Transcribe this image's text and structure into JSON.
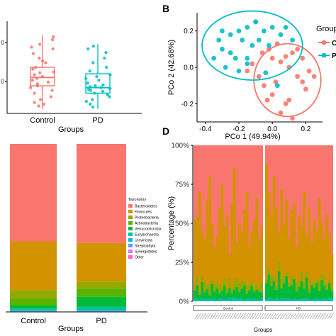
{
  "panels": {
    "B": "B",
    "D": "D"
  },
  "colors": {
    "control": "#F8766D",
    "pd": "#00BFC4",
    "bacteroidetes": "#F8766D",
    "firmicutes": "#D39200",
    "proteobacteria": "#93AA00",
    "actinobacteria": "#5BB300",
    "verrucomicrobia": "#00BA38",
    "euryarchaeota": "#00C19F",
    "uroviricota": "#00B9E3",
    "streptophyta": "#619CFF",
    "synergistetes": "#DB72FB",
    "other": "#FF61C3"
  },
  "chart_data": [
    {
      "id": "A",
      "type": "box",
      "xlabel": "Groups",
      "categories": [
        "Control",
        "PD"
      ],
      "y_tick_labels": [
        "0",
        "0"
      ],
      "boxes": [
        {
          "q1": 0.3,
          "median": 0.39,
          "q3": 0.5,
          "whisker_low": 0.05,
          "whisker_high": 0.85
        },
        {
          "q1": 0.22,
          "median": 0.28,
          "q3": 0.43,
          "whisker_low": 0.05,
          "whisker_high": 0.75
        }
      ],
      "points": [
        [
          0.8,
          0.83,
          0.72,
          0.75,
          0.7,
          0.65,
          0.6,
          0.57,
          0.55,
          0.5,
          0.48,
          0.45,
          0.44,
          0.42,
          0.4,
          0.38,
          0.36,
          0.34,
          0.32,
          0.3,
          0.28,
          0.25,
          0.22,
          0.18,
          0.15,
          0.12,
          0.1,
          0.08
        ],
        [
          0.73,
          0.7,
          0.66,
          0.6,
          0.55,
          0.5,
          0.46,
          0.42,
          0.4,
          0.38,
          0.36,
          0.33,
          0.31,
          0.3,
          0.29,
          0.28,
          0.27,
          0.26,
          0.25,
          0.24,
          0.22,
          0.2,
          0.18,
          0.15,
          0.13,
          0.1,
          0.07
        ]
      ]
    },
    {
      "id": "B",
      "type": "scatter",
      "xlabel": "PCo 1 (49.94%)",
      "ylabel": "PCo 2 (42.68%)",
      "xlim": [
        -0.45,
        0.3
      ],
      "ylim": [
        -0.3,
        0.3
      ],
      "x_ticks": [
        -0.4,
        -0.2,
        0.0,
        0.2
      ],
      "x_tick_labels": [
        "-0.4",
        "-0.2",
        "0.0",
        "0.2"
      ],
      "y_ticks": [
        -0.2,
        0.0,
        0.2
      ],
      "y_tick_labels": [
        "-0.2",
        "0.0",
        "0.2"
      ],
      "legend_title": "Group",
      "legend_labels": [
        "C",
        "P"
      ],
      "series": [
        {
          "points": [
            [
              0.05,
              0.03
            ],
            [
              0.1,
              0.0
            ],
            [
              0.15,
              -0.05
            ],
            [
              0.02,
              -0.08
            ],
            [
              -0.05,
              -0.1
            ],
            [
              0.0,
              -0.15
            ],
            [
              0.08,
              -0.2
            ],
            [
              0.2,
              -0.12
            ],
            [
              0.12,
              0.08
            ],
            [
              -0.08,
              -0.05
            ],
            [
              0.05,
              -0.25
            ],
            [
              -0.02,
              0.1
            ],
            [
              0.18,
              0.05
            ],
            [
              0.22,
              -0.02
            ],
            [
              -0.12,
              0.02
            ],
            [
              0.03,
              0.13
            ],
            [
              0.1,
              -0.18
            ],
            [
              -0.03,
              -0.18
            ],
            [
              0.15,
              0.1
            ],
            [
              -0.15,
              -0.02
            ],
            [
              0.08,
              0.06
            ],
            [
              0.0,
              0.05
            ],
            [
              0.18,
              -0.08
            ],
            [
              -0.06,
              0.08
            ],
            [
              0.25,
              -0.05
            ],
            [
              0.12,
              -0.28
            ]
          ],
          "ellipse": {
            "cx": 0.09,
            "cy": -0.07,
            "rx": 0.2,
            "ry": 0.2
          }
        },
        {
          "points": [
            [
              -0.25,
              0.18
            ],
            [
              -0.2,
              0.2
            ],
            [
              -0.15,
              0.22
            ],
            [
              -0.1,
              0.25
            ],
            [
              -0.3,
              0.1
            ],
            [
              -0.35,
              0.05
            ],
            [
              -0.22,
              0.05
            ],
            [
              -0.18,
              0.15
            ],
            [
              -0.12,
              0.12
            ],
            [
              -0.05,
              0.2
            ],
            [
              0.0,
              0.22
            ],
            [
              0.05,
              0.18
            ],
            [
              -0.28,
              0.0
            ],
            [
              -0.15,
              0.02
            ],
            [
              -0.08,
              0.15
            ],
            [
              -0.02,
              0.12
            ],
            [
              -0.2,
              -0.02
            ],
            [
              -0.1,
              0.25
            ],
            [
              0.08,
              0.22
            ],
            [
              -0.3,
              0.2
            ],
            [
              0.12,
              0.15
            ],
            [
              -0.04,
              -0.03
            ],
            [
              0.03,
              -0.1
            ],
            [
              -0.15,
              0.05
            ],
            [
              -0.25,
              0.08
            ],
            [
              -0.32,
              0.15
            ]
          ],
          "ellipse": {
            "cx": -0.12,
            "cy": 0.12,
            "rx": 0.3,
            "ry": 0.19
          }
        }
      ]
    },
    {
      "id": "C",
      "type": "bar",
      "stacked": true,
      "xlabel": "Groups",
      "categories": [
        "Control",
        "PD"
      ],
      "legend_title": "Taxonomy",
      "legend_labels": [
        "Bacteroidetes",
        "Firmicutes",
        "Proteobacteria",
        "Actinobacteria",
        "Verrucomicrobia",
        "Euryarchaeota",
        "Uroviricota",
        "Streptophyta",
        "Synergistetes",
        "Other"
      ],
      "series": [
        {
          "values": [
            0.58,
            0.59
          ]
        },
        {
          "values": [
            0.29,
            0.23
          ]
        },
        {
          "values": [
            0.05,
            0.04
          ]
        },
        {
          "values": [
            0.04,
            0.05
          ]
        },
        {
          "values": [
            0.02,
            0.06
          ]
        },
        {
          "values": [
            0.01,
            0.02
          ]
        },
        {
          "values": [
            0.005,
            0.005
          ]
        },
        {
          "values": [
            0.002,
            0.002
          ]
        },
        {
          "values": [
            0.001,
            0.001
          ]
        },
        {
          "values": [
            0.002,
            0.002
          ]
        }
      ]
    },
    {
      "id": "D",
      "type": "bar",
      "stacked": true,
      "xlabel": "Groups",
      "ylabel": "Percentage (%)",
      "y_tick_labels": [
        "0%",
        "25%",
        "50%",
        "75%",
        "100%"
      ],
      "group_labels": [
        "Control",
        "PD"
      ],
      "n_control": 28,
      "n_pd": 27,
      "control_bottom": [
        0.52,
        0.55,
        0.7,
        0.45,
        0.4,
        0.65,
        0.8,
        0.5,
        0.35,
        0.42,
        0.6,
        0.75,
        0.48,
        0.55,
        0.3,
        0.62,
        0.85,
        0.38,
        0.5,
        0.44,
        0.58,
        0.7,
        0.36,
        0.45,
        0.52,
        0.66,
        0.4,
        0.48
      ],
      "control_green": [
        0.05,
        0.08,
        0.03,
        0.1,
        0.04,
        0.06,
        0.02,
        0.09,
        0.05,
        0.07,
        0.03,
        0.05,
        0.08,
        0.04,
        0.06,
        0.03,
        0.05,
        0.07,
        0.04,
        0.06,
        0.09,
        0.03,
        0.05,
        0.08,
        0.04,
        0.06,
        0.05,
        0.03
      ],
      "pd_bottom": [
        0.88,
        0.7,
        0.55,
        0.8,
        0.6,
        0.45,
        0.72,
        0.5,
        0.65,
        0.4,
        0.58,
        0.62,
        0.35,
        0.55,
        0.48,
        0.7,
        0.42,
        0.6,
        0.38,
        0.52,
        0.45,
        0.66,
        0.5,
        0.4,
        0.56,
        0.44,
        0.3
      ],
      "pd_green": [
        0.1,
        0.15,
        0.08,
        0.12,
        0.05,
        0.18,
        0.06,
        0.1,
        0.14,
        0.07,
        0.09,
        0.12,
        0.05,
        0.08,
        0.11,
        0.06,
        0.13,
        0.04,
        0.09,
        0.07,
        0.1,
        0.05,
        0.12,
        0.08,
        0.06,
        0.09,
        0.04
      ]
    }
  ]
}
